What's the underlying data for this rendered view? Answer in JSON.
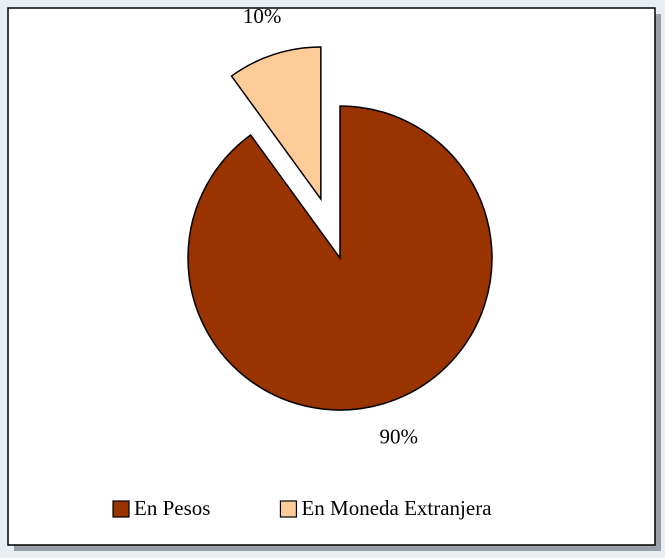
{
  "chart_data": {
    "type": "pie",
    "categories": [
      "En Pesos",
      "En Moneda Extranjera"
    ],
    "values": [
      90,
      10
    ],
    "value_labels": [
      "90%",
      "10%"
    ],
    "colors": [
      "#993300",
      "#ffcc99"
    ],
    "exploded": [
      false,
      true
    ],
    "legend": "bottom"
  }
}
